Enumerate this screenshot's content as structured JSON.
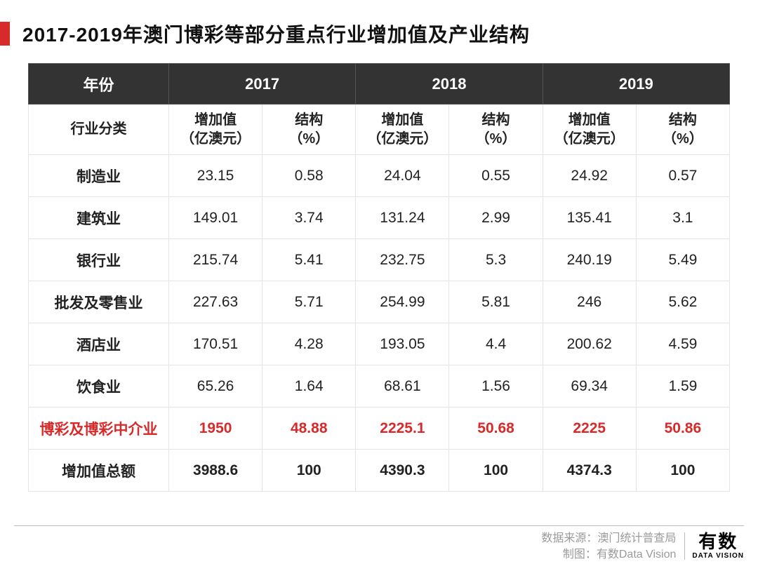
{
  "title": "2017-2019年澳门博彩等部分重点行业增加值及产业结构",
  "table": {
    "type": "table",
    "year_label": "年份",
    "category_label": "行业分类",
    "years": [
      "2017",
      "2018",
      "2019"
    ],
    "sub_value_label_l1": "增加值",
    "sub_value_label_l2": "（亿澳元）",
    "sub_struct_label_l1": "结构",
    "sub_struct_label_l2": "（%）",
    "rows": [
      {
        "label": "制造业",
        "cells": [
          "23.15",
          "0.58",
          "24.04",
          "0.55",
          "24.92",
          "0.57"
        ],
        "highlight": false
      },
      {
        "label": "建筑业",
        "cells": [
          "149.01",
          "3.74",
          "131.24",
          "2.99",
          "135.41",
          "3.1"
        ],
        "highlight": false
      },
      {
        "label": "银行业",
        "cells": [
          "215.74",
          "5.41",
          "232.75",
          "5.3",
          "240.19",
          "5.49"
        ],
        "highlight": false
      },
      {
        "label": "批发及零售业",
        "cells": [
          "227.63",
          "5.71",
          "254.99",
          "5.81",
          "246",
          "5.62"
        ],
        "highlight": false
      },
      {
        "label": "酒店业",
        "cells": [
          "170.51",
          "4.28",
          "193.05",
          "4.4",
          "200.62",
          "4.59"
        ],
        "highlight": false
      },
      {
        "label": "饮食业",
        "cells": [
          "65.26",
          "1.64",
          "68.61",
          "1.56",
          "69.34",
          "1.59"
        ],
        "highlight": false
      },
      {
        "label": "博彩及博彩中介业",
        "cells": [
          "1950",
          "48.88",
          "2225.1",
          "50.68",
          "2225",
          "50.86"
        ],
        "highlight": true
      },
      {
        "label": "增加值总额",
        "cells": [
          "3988.6",
          "100",
          "4390.3",
          "100",
          "4374.3",
          "100"
        ],
        "highlight": false
      }
    ],
    "colors": {
      "header_bg": "#333333",
      "header_text": "#ffffff",
      "border": "#e5e5e5",
      "highlight_text": "#d82a2a",
      "accent": "#d82a2a",
      "body_text": "#222222"
    },
    "font_sizes": {
      "title": 28,
      "header": 22,
      "sub_header": 20,
      "cell": 21
    }
  },
  "footer": {
    "source_label": "数据来源：",
    "source_value": "澳门统计普查局",
    "chart_label": "制图：",
    "chart_value": "有数Data Vision",
    "logo_cn": "有数",
    "logo_en": "DATA VISION"
  }
}
